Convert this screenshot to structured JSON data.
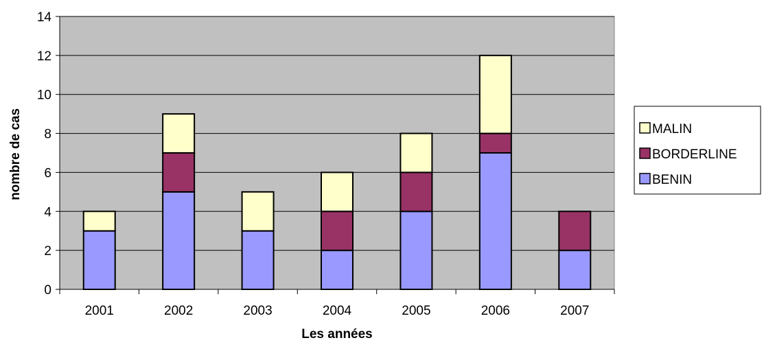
{
  "chart_data": {
    "type": "bar",
    "stacked": true,
    "categories": [
      "2001",
      "2002",
      "2003",
      "2004",
      "2005",
      "2006",
      "2007"
    ],
    "series": [
      {
        "name": "BENIN",
        "color": "#9999ff",
        "values": [
          3,
          5,
          3,
          2,
          4,
          7,
          2
        ]
      },
      {
        "name": "BORDERLINE",
        "color": "#993366",
        "values": [
          0,
          2,
          0,
          2,
          2,
          1,
          2
        ]
      },
      {
        "name": "MALIN",
        "color": "#ffffcc",
        "values": [
          1,
          2,
          2,
          2,
          2,
          4,
          0
        ]
      }
    ],
    "legend_order": [
      "MALIN",
      "BORDERLINE",
      "BENIN"
    ],
    "xlabel": "Les années",
    "ylabel": "nombre de cas",
    "ylim": [
      0,
      14
    ],
    "yticks": [
      0,
      2,
      4,
      6,
      8,
      10,
      12,
      14
    ],
    "grid": true,
    "plot_background": "#c0c0c0",
    "legend_position": "right"
  }
}
